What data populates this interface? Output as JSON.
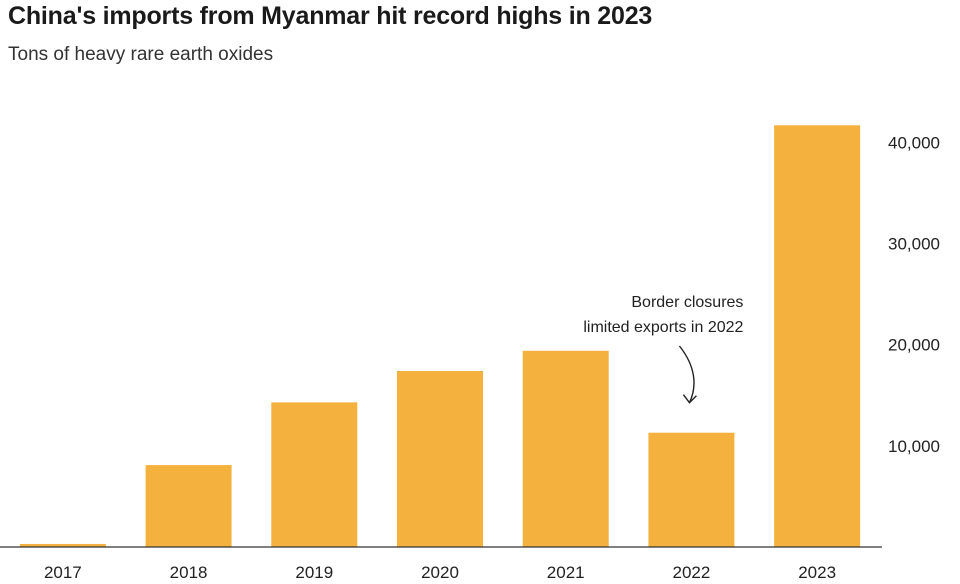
{
  "chart_data": {
    "type": "bar",
    "title": "China's imports from Myanmar hit record highs in 2023",
    "subtitle": "Tons of heavy rare earth oxides",
    "categories": [
      "2017",
      "2018",
      "2019",
      "2020",
      "2021",
      "2022",
      "2023"
    ],
    "values": [
      300,
      8100,
      14300,
      17400,
      19400,
      11300,
      41700
    ],
    "ylim": [
      0,
      44000
    ],
    "yticks": [
      10000,
      20000,
      30000,
      40000
    ],
    "ytick_labels": [
      "10,000",
      "20,000",
      "30,000",
      "40,000"
    ],
    "y_axis_side": "right",
    "grid": false,
    "bar_color": "#f5b13d",
    "annotation": {
      "lines": [
        "Border closures",
        "limited exports in 2022"
      ],
      "target_category": "2022"
    }
  }
}
